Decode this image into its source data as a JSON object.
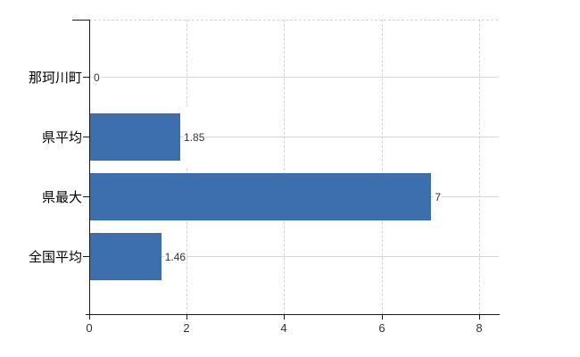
{
  "chart_data": {
    "type": "bar",
    "orientation": "horizontal",
    "title": "",
    "categories": [
      "那珂川町",
      "県平均",
      "県最大",
      "全国平均"
    ],
    "values": [
      0,
      1.85,
      7,
      1.46
    ],
    "value_labels": [
      "0",
      "1.85",
      "7",
      "1.46"
    ],
    "x_axis": {
      "ticks": [
        "0",
        "2",
        "4",
        "6",
        "8"
      ],
      "range": [
        0,
        8
      ]
    },
    "grid": {
      "vertical_gridlines": true,
      "horizontal_row_lines": true,
      "top_border_dashed": true
    },
    "legend": "none",
    "colors": {
      "bar": "#3d6fae",
      "axis": "#1a1a1a",
      "vertical_grid": "#d4d4d4",
      "row_line": "#d3d8d3",
      "category_text": "#000000",
      "value_text": "#333333",
      "background": "#ffffff"
    }
  }
}
